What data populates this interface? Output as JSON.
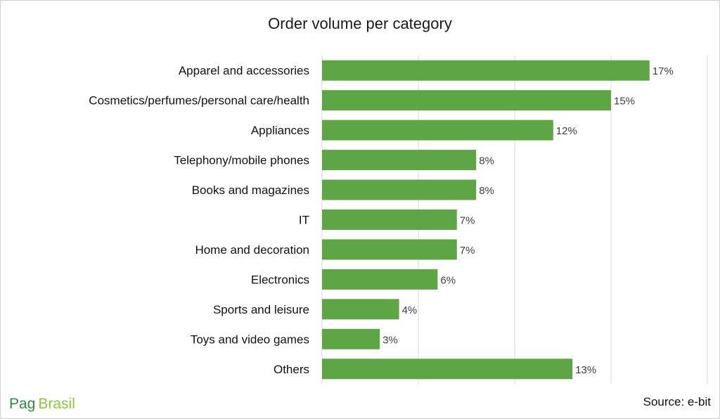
{
  "chart_data": {
    "type": "bar",
    "orientation": "horizontal",
    "title": "Order volume per category",
    "categories": [
      "Apparel and accessories",
      "Cosmetics/perfumes/personal care/health",
      "Appliances",
      "Telephony/mobile phones",
      "Books and magazines",
      "IT",
      "Home and decoration",
      "Electronics",
      "Sports and leisure",
      "Toys and video games",
      "Others"
    ],
    "values": [
      17,
      15,
      12,
      8,
      8,
      7,
      7,
      6,
      4,
      3,
      13
    ],
    "value_labels": [
      "17%",
      "15%",
      "12%",
      "8%",
      "8%",
      "7%",
      "7%",
      "6%",
      "4%",
      "3%",
      "13%"
    ],
    "xlim": [
      0,
      20
    ],
    "grid": true,
    "legend": "none",
    "bar_color": "#5ea645"
  },
  "source": "Source: e-bit",
  "logo": {
    "part1": "Pag",
    "part2": "Brasil",
    "color1": "#2d8a3e",
    "color2": "#8dc63f"
  }
}
